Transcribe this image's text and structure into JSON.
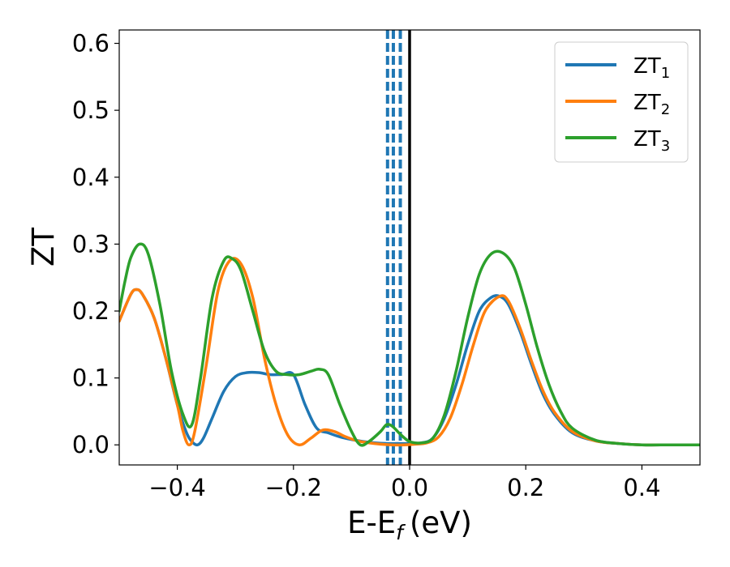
{
  "chart_data": {
    "type": "line",
    "xlabel": "E-E",
    "xlabel_sub": "f",
    "xlabel_unit": "(eV)",
    "ylabel": "ZT",
    "xlim": [
      -0.5,
      0.5
    ],
    "ylim": [
      -0.03,
      0.62
    ],
    "xticks": [
      -0.4,
      -0.2,
      0.0,
      0.2,
      0.4
    ],
    "xtick_labels": [
      "−0.4",
      "−0.2",
      "0.0",
      "0.2",
      "0.4"
    ],
    "yticks": [
      0.0,
      0.1,
      0.2,
      0.3,
      0.4,
      0.5,
      0.6
    ],
    "ytick_labels": [
      "0.0",
      "0.1",
      "0.2",
      "0.3",
      "0.4",
      "0.5",
      "0.6"
    ],
    "grid": false,
    "legend_position": "top-right",
    "vlines": [
      {
        "x": -0.038,
        "style": "dashed",
        "color": "#1f77b4"
      },
      {
        "x": -0.028,
        "style": "dashed",
        "color": "#1f77b4"
      },
      {
        "x": -0.016,
        "style": "dashed",
        "color": "#1f77b4"
      },
      {
        "x": 0.0,
        "style": "solid",
        "color": "#000000"
      }
    ],
    "series": [
      {
        "name": "ZT",
        "name_sub": "1",
        "color": "#1f77b4",
        "x": [
          -0.5,
          -0.48,
          -0.47,
          -0.46,
          -0.44,
          -0.42,
          -0.4,
          -0.385,
          -0.375,
          -0.365,
          -0.355,
          -0.34,
          -0.32,
          -0.3,
          -0.28,
          -0.26,
          -0.24,
          -0.22,
          -0.2,
          -0.18,
          -0.16,
          -0.14,
          -0.12,
          -0.1,
          -0.08,
          -0.06,
          -0.04,
          -0.02,
          0.0,
          0.02,
          0.04,
          0.06,
          0.08,
          0.1,
          0.12,
          0.14,
          0.155,
          0.17,
          0.19,
          0.21,
          0.23,
          0.25,
          0.28,
          0.32,
          0.36,
          0.4,
          0.45,
          0.5
        ],
        "y": [
          0.185,
          0.225,
          0.232,
          0.225,
          0.19,
          0.13,
          0.06,
          0.02,
          0.005,
          0.0,
          0.01,
          0.04,
          0.08,
          0.102,
          0.108,
          0.108,
          0.105,
          0.105,
          0.105,
          0.06,
          0.025,
          0.018,
          0.012,
          0.008,
          0.005,
          0.003,
          0.002,
          0.002,
          0.002,
          0.003,
          0.01,
          0.04,
          0.09,
          0.15,
          0.2,
          0.22,
          0.222,
          0.21,
          0.17,
          0.12,
          0.075,
          0.045,
          0.018,
          0.006,
          0.002,
          0.0,
          0.0,
          0.0
        ]
      },
      {
        "name": "ZT",
        "name_sub": "2",
        "color": "#ff7f0e",
        "x": [
          -0.5,
          -0.48,
          -0.47,
          -0.46,
          -0.44,
          -0.42,
          -0.4,
          -0.39,
          -0.38,
          -0.37,
          -0.35,
          -0.33,
          -0.31,
          -0.29,
          -0.27,
          -0.25,
          -0.23,
          -0.21,
          -0.19,
          -0.17,
          -0.15,
          -0.13,
          -0.11,
          -0.09,
          -0.07,
          -0.05,
          -0.03,
          -0.01,
          0.01,
          0.03,
          0.05,
          0.07,
          0.09,
          0.11,
          0.13,
          0.155,
          0.17,
          0.19,
          0.21,
          0.23,
          0.25,
          0.28,
          0.32,
          0.36,
          0.4,
          0.45,
          0.5
        ],
        "y": [
          0.185,
          0.225,
          0.232,
          0.225,
          0.19,
          0.13,
          0.06,
          0.02,
          0.0,
          0.02,
          0.12,
          0.23,
          0.275,
          0.27,
          0.22,
          0.13,
          0.06,
          0.015,
          0.0,
          0.01,
          0.022,
          0.02,
          0.012,
          0.006,
          0.003,
          0.001,
          0.0,
          0.0,
          0.001,
          0.003,
          0.012,
          0.04,
          0.09,
          0.15,
          0.2,
          0.222,
          0.215,
          0.175,
          0.125,
          0.08,
          0.048,
          0.02,
          0.006,
          0.002,
          0.0,
          0.0,
          0.0
        ]
      },
      {
        "name": "ZT",
        "name_sub": "3",
        "color": "#2ca02c",
        "x": [
          -0.5,
          -0.49,
          -0.48,
          -0.465,
          -0.45,
          -0.43,
          -0.41,
          -0.39,
          -0.375,
          -0.36,
          -0.34,
          -0.32,
          -0.305,
          -0.29,
          -0.27,
          -0.25,
          -0.23,
          -0.21,
          -0.19,
          -0.17,
          -0.155,
          -0.14,
          -0.12,
          -0.1,
          -0.085,
          -0.07,
          -0.05,
          -0.04,
          -0.03,
          -0.015,
          0.0,
          0.02,
          0.04,
          0.06,
          0.08,
          0.1,
          0.12,
          0.14,
          0.16,
          0.18,
          0.2,
          0.22,
          0.24,
          0.26,
          0.28,
          0.32,
          0.36,
          0.4,
          0.45,
          0.5
        ],
        "y": [
          0.2,
          0.245,
          0.28,
          0.3,
          0.285,
          0.21,
          0.11,
          0.045,
          0.03,
          0.1,
          0.22,
          0.275,
          0.278,
          0.26,
          0.2,
          0.14,
          0.11,
          0.105,
          0.105,
          0.11,
          0.113,
          0.105,
          0.06,
          0.02,
          0.0,
          0.005,
          0.02,
          0.03,
          0.028,
          0.015,
          0.005,
          0.003,
          0.01,
          0.045,
          0.11,
          0.19,
          0.255,
          0.285,
          0.287,
          0.265,
          0.21,
          0.145,
          0.09,
          0.05,
          0.025,
          0.007,
          0.002,
          0.0,
          0.0,
          0.0
        ]
      }
    ]
  }
}
